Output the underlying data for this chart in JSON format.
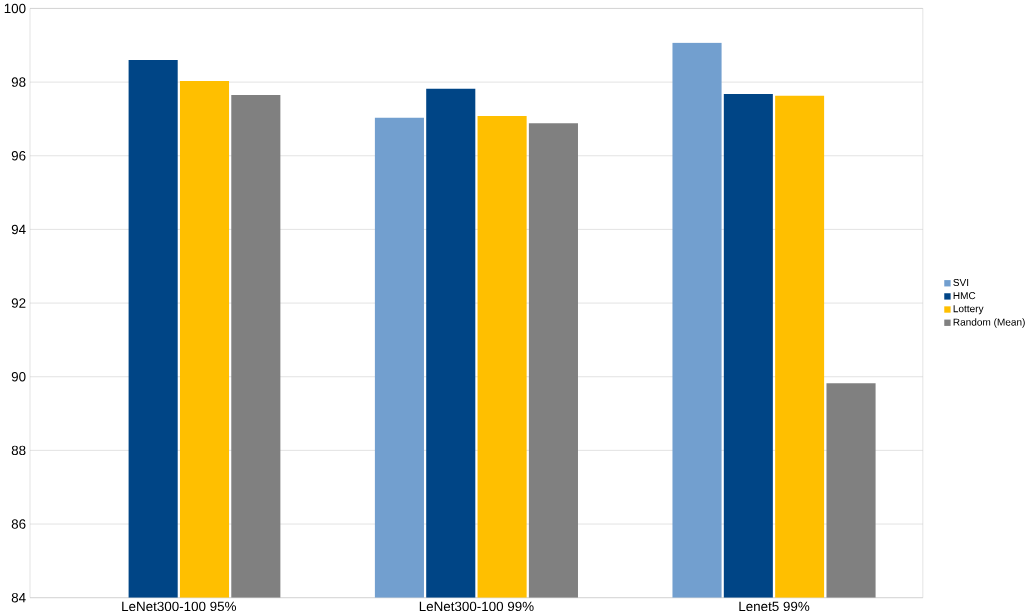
{
  "chart_data": {
    "type": "bar",
    "categories": [
      "LeNet300-100 95%",
      "LeNet300-100 99%",
      "Lenet5 99%"
    ],
    "series": [
      {
        "name": "SVI",
        "color": "#729fcf",
        "values": [
          null,
          97.03,
          99.07
        ]
      },
      {
        "name": "HMC",
        "color": "#004586",
        "values": [
          98.6,
          97.82,
          97.68
        ]
      },
      {
        "name": "Lottery",
        "color": "#ffbf00",
        "values": [
          98.03,
          97.08,
          97.63
        ]
      },
      {
        "name": "Random (Mean)",
        "color": "#808080",
        "values": [
          97.65,
          96.88,
          89.82
        ]
      }
    ],
    "ylim": [
      84,
      100
    ],
    "yticks": [
      84,
      86,
      88,
      90,
      92,
      94,
      96,
      98,
      100
    ],
    "grid": "y",
    "legend": "right"
  }
}
